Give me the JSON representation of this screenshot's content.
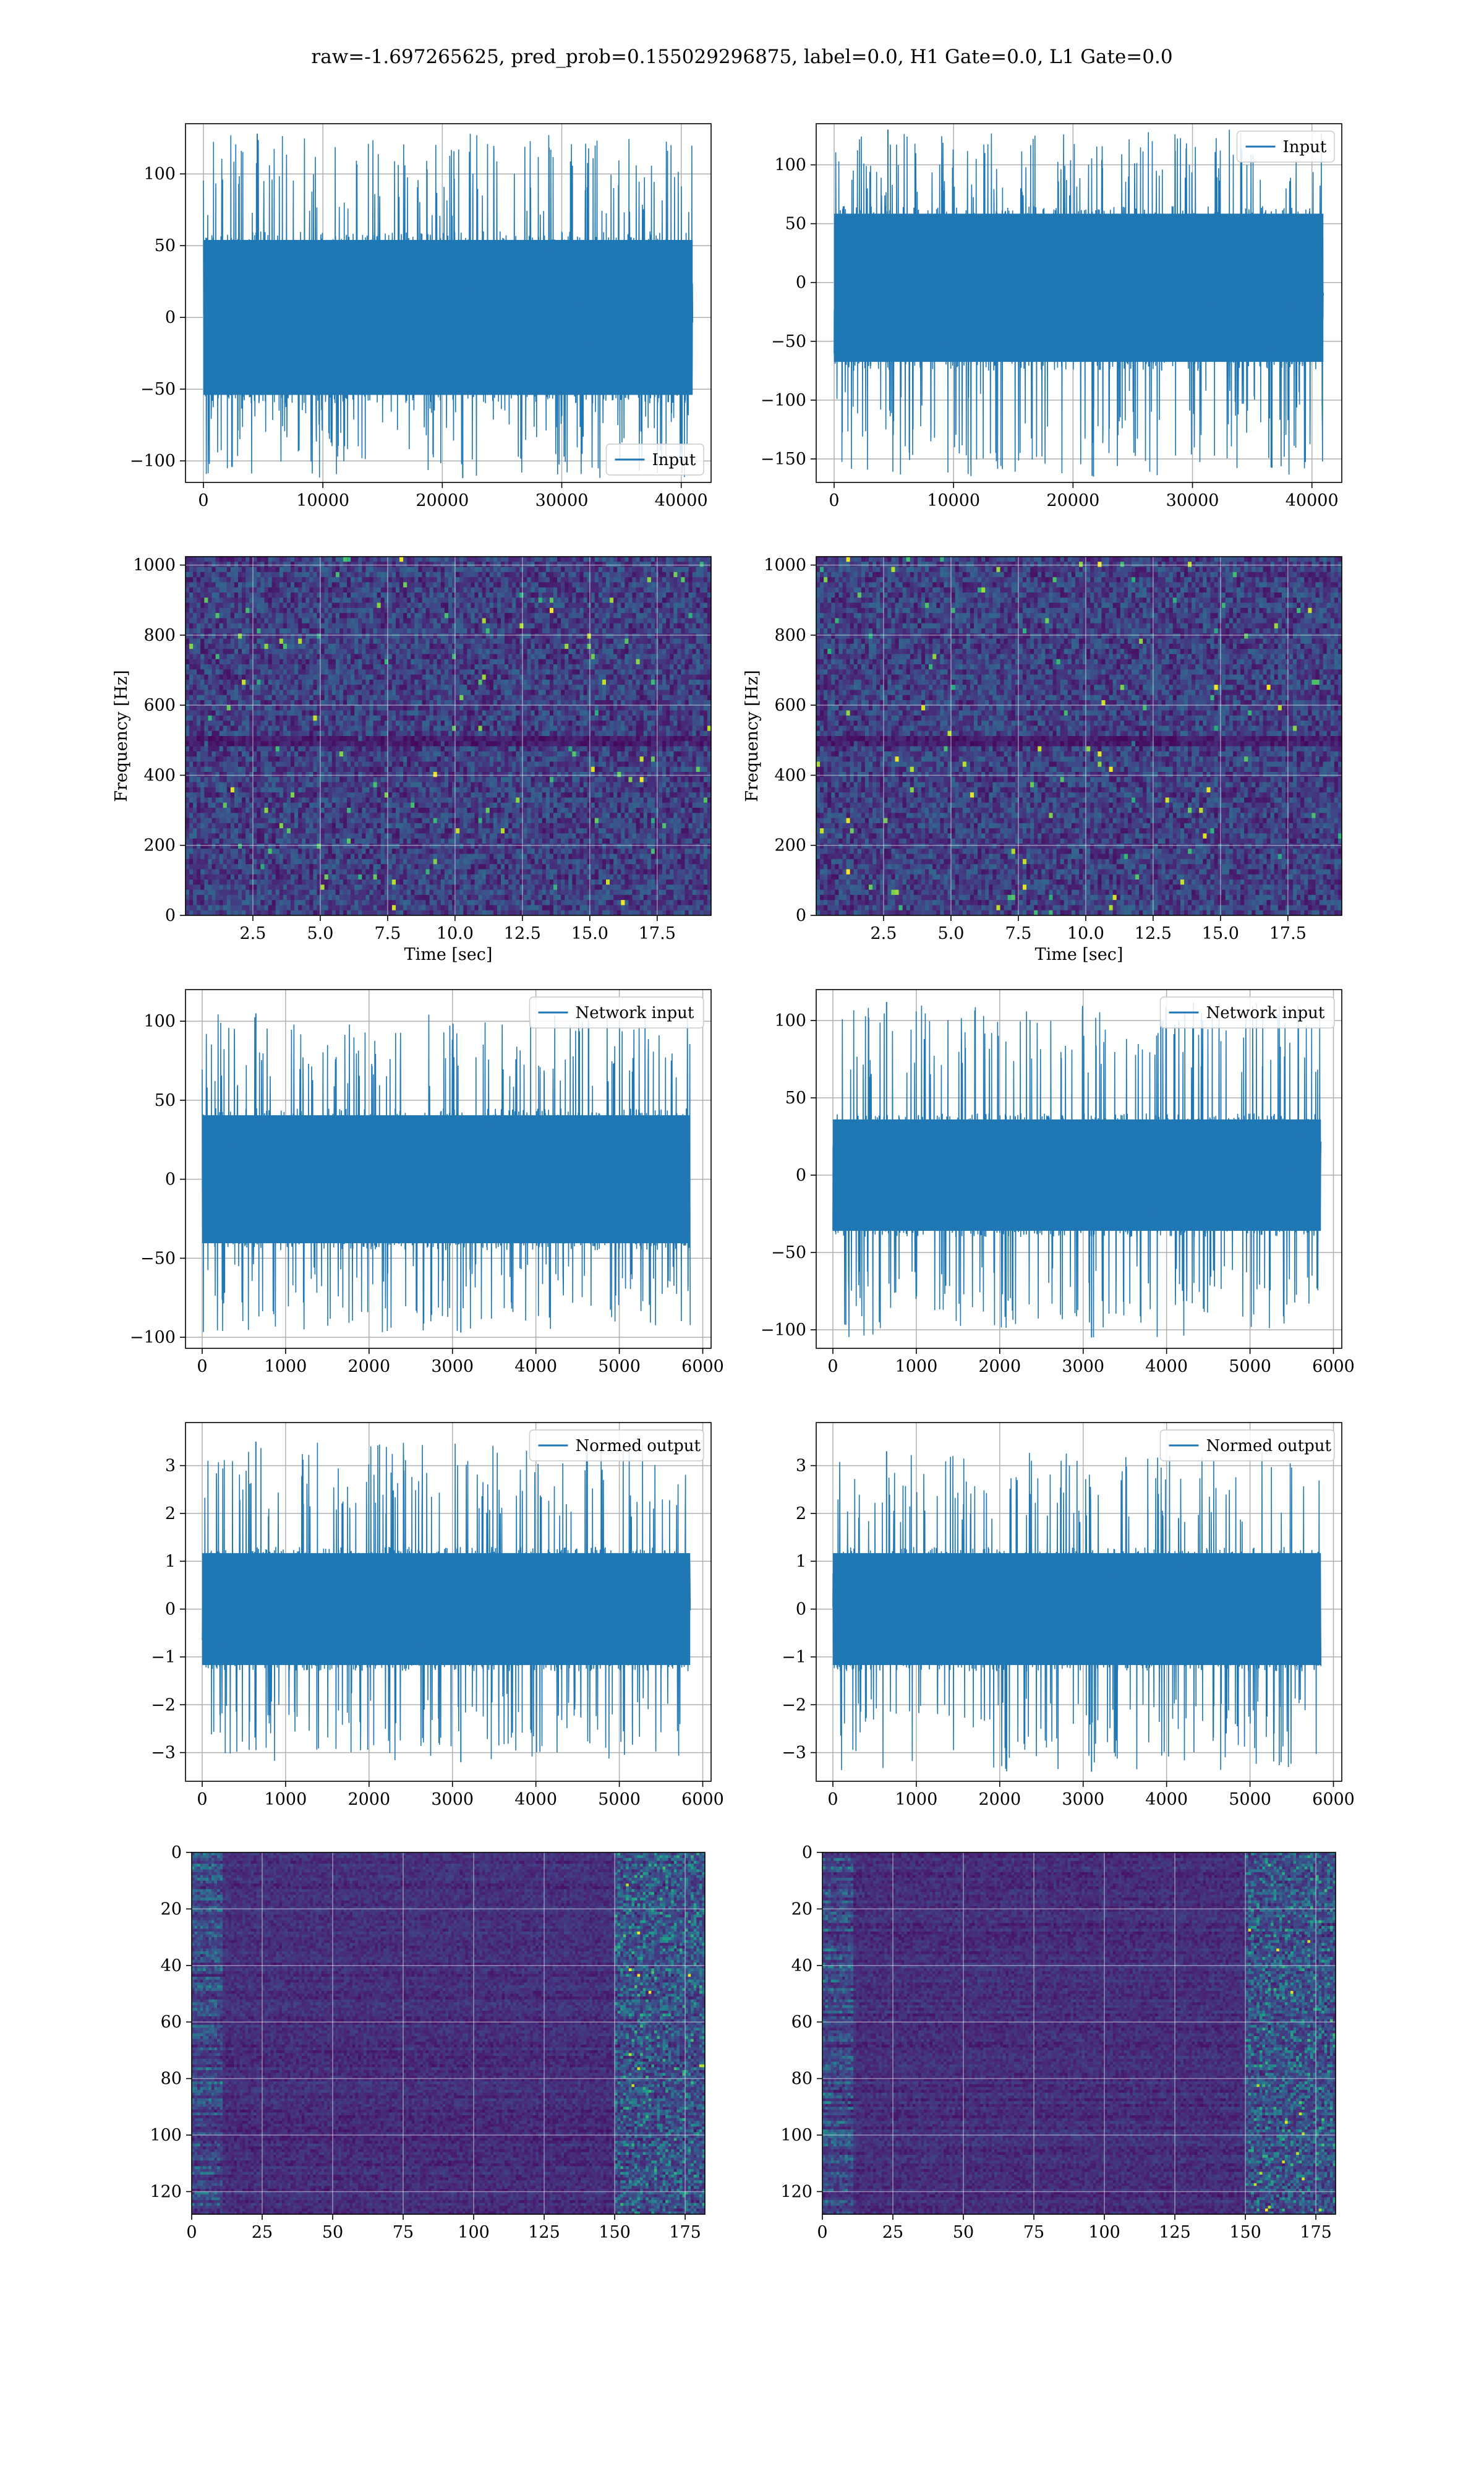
{
  "suptitle": "raw=-1.697265625, pred_prob=0.155029296875, label=0.0, H1 Gate=0.0, L1 Gate=0.0",
  "colors": {
    "line": "#1f77b4",
    "grid": "#b0b0b0",
    "viridis_dark": "#440154",
    "viridis_bright": "#fde725"
  },
  "chart_data": [
    {
      "id": "h1-input",
      "type": "line",
      "legend": "Input",
      "legend_loc": "lower-right",
      "xlim": [
        -1500,
        42500
      ],
      "ylim": [
        -115,
        135
      ],
      "xticks": [
        0,
        10000,
        20000,
        30000,
        40000
      ],
      "yticks": [
        -100,
        -50,
        0,
        50,
        100
      ],
      "xtick_labels": [
        "0",
        "10000",
        "20000",
        "30000",
        "40000"
      ],
      "ytick_labels": [
        "−100",
        "−50",
        "0",
        "50",
        "100"
      ],
      "signal": {
        "x_start": 0,
        "x_end": 40960,
        "core_min": -60,
        "core_max": 60,
        "peak_min": -112,
        "peak_max": 128
      }
    },
    {
      "id": "l1-input",
      "type": "line",
      "legend": "Input",
      "legend_loc": "upper-right",
      "xlim": [
        -1500,
        42500
      ],
      "ylim": [
        -170,
        135
      ],
      "xticks": [
        0,
        10000,
        20000,
        30000,
        40000
      ],
      "yticks": [
        -150,
        -100,
        -50,
        0,
        50,
        100
      ],
      "xtick_labels": [
        "0",
        "10000",
        "20000",
        "30000",
        "40000"
      ],
      "ytick_labels": [
        "−150",
        "−100",
        "−50",
        "0",
        "50",
        "100"
      ],
      "signal": {
        "x_start": 0,
        "x_end": 40960,
        "core_min": -75,
        "core_max": 65,
        "peak_min": -165,
        "peak_max": 130
      }
    },
    {
      "id": "h1-spectrogram",
      "type": "heatmap",
      "colormap": "viridis",
      "xlabel": "Time [sec]",
      "ylabel": "Frequency [Hz]",
      "xlim": [
        0,
        19.5
      ],
      "ylim": [
        0,
        1024
      ],
      "xticks": [
        2.5,
        5.0,
        7.5,
        10.0,
        12.5,
        15.0,
        17.5
      ],
      "yticks": [
        0,
        200,
        400,
        600,
        800,
        1000
      ],
      "xtick_labels": [
        "2.5",
        "5.0",
        "7.5",
        "10.0",
        "12.5",
        "15.0",
        "17.5"
      ],
      "ytick_labels": [
        "0",
        "200",
        "400",
        "600",
        "800",
        "1000"
      ]
    },
    {
      "id": "l1-spectrogram",
      "type": "heatmap",
      "colormap": "viridis",
      "xlabel": "Time [sec]",
      "ylabel": "Frequency [Hz]",
      "xlim": [
        0,
        19.5
      ],
      "ylim": [
        0,
        1024
      ],
      "xticks": [
        2.5,
        5.0,
        7.5,
        10.0,
        12.5,
        15.0,
        17.5
      ],
      "yticks": [
        0,
        200,
        400,
        600,
        800,
        1000
      ],
      "xtick_labels": [
        "2.5",
        "5.0",
        "7.5",
        "10.0",
        "12.5",
        "15.0",
        "17.5"
      ],
      "ytick_labels": [
        "0",
        "200",
        "400",
        "600",
        "800",
        "1000"
      ]
    },
    {
      "id": "h1-network-input",
      "type": "line",
      "legend": "Network input",
      "legend_loc": "upper-right",
      "xlim": [
        -200,
        6100
      ],
      "ylim": [
        -107,
        120
      ],
      "xticks": [
        0,
        1000,
        2000,
        3000,
        4000,
        5000,
        6000
      ],
      "yticks": [
        -100,
        -50,
        0,
        50,
        100
      ],
      "xtick_labels": [
        "0",
        "1000",
        "2000",
        "3000",
        "4000",
        "5000",
        "6000"
      ],
      "ytick_labels": [
        "−100",
        "−50",
        "0",
        "50",
        "100"
      ],
      "signal": {
        "x_start": 0,
        "x_end": 5850,
        "core_min": -45,
        "core_max": 45,
        "peak_min": -97,
        "peak_max": 105
      }
    },
    {
      "id": "l1-network-input",
      "type": "line",
      "legend": "Network input",
      "legend_loc": "upper-right",
      "xlim": [
        -200,
        6100
      ],
      "ylim": [
        -112,
        120
      ],
      "xticks": [
        0,
        1000,
        2000,
        3000,
        4000,
        5000,
        6000
      ],
      "yticks": [
        -100,
        -50,
        0,
        50,
        100
      ],
      "xtick_labels": [
        "0",
        "1000",
        "2000",
        "3000",
        "4000",
        "5000",
        "6000"
      ],
      "ytick_labels": [
        "−100",
        "−50",
        "0",
        "50",
        "100"
      ],
      "signal": {
        "x_start": 0,
        "x_end": 5850,
        "core_min": -40,
        "core_max": 40,
        "peak_min": -105,
        "peak_max": 112
      }
    },
    {
      "id": "h1-normed-output",
      "type": "line",
      "legend": "Normed output",
      "legend_loc": "upper-right",
      "xlim": [
        -200,
        6100
      ],
      "ylim": [
        -3.6,
        3.9
      ],
      "xticks": [
        0,
        1000,
        2000,
        3000,
        4000,
        5000,
        6000
      ],
      "yticks": [
        -3,
        -2,
        -1,
        0,
        1,
        2,
        3
      ],
      "xtick_labels": [
        "0",
        "1000",
        "2000",
        "3000",
        "4000",
        "5000",
        "6000"
      ],
      "ytick_labels": [
        "−3",
        "−2",
        "−1",
        "0",
        "1",
        "2",
        "3"
      ],
      "signal": {
        "x_start": 0,
        "x_end": 5850,
        "core_min": -1.3,
        "core_max": 1.3,
        "peak_min": -3.2,
        "peak_max": 3.5
      }
    },
    {
      "id": "l1-normed-output",
      "type": "line",
      "legend": "Normed output",
      "legend_loc": "upper-right",
      "xlim": [
        -200,
        6100
      ],
      "ylim": [
        -3.6,
        3.9
      ],
      "xticks": [
        0,
        1000,
        2000,
        3000,
        4000,
        5000,
        6000
      ],
      "yticks": [
        -3,
        -2,
        -1,
        0,
        1,
        2,
        3
      ],
      "xtick_labels": [
        "0",
        "1000",
        "2000",
        "3000",
        "4000",
        "5000",
        "6000"
      ],
      "ytick_labels": [
        "−3",
        "−2",
        "−1",
        "0",
        "1",
        "2",
        "3"
      ],
      "signal": {
        "x_start": 0,
        "x_end": 5850,
        "core_min": -1.3,
        "core_max": 1.3,
        "peak_min": -3.4,
        "peak_max": 3.3
      }
    },
    {
      "id": "h1-feature-map",
      "type": "heatmap",
      "colormap": "viridis",
      "xlim": [
        0,
        182
      ],
      "ylim": [
        128,
        0
      ],
      "xticks": [
        0,
        25,
        50,
        75,
        100,
        125,
        150,
        175
      ],
      "yticks": [
        0,
        20,
        40,
        60,
        80,
        100,
        120
      ],
      "xtick_labels": [
        "0",
        "25",
        "50",
        "75",
        "100",
        "125",
        "150",
        "175"
      ],
      "ytick_labels": [
        "0",
        "20",
        "40",
        "60",
        "80",
        "100",
        "120"
      ]
    },
    {
      "id": "l1-feature-map",
      "type": "heatmap",
      "colormap": "viridis",
      "xlim": [
        0,
        182
      ],
      "ylim": [
        128,
        0
      ],
      "xticks": [
        0,
        25,
        50,
        75,
        100,
        125,
        150,
        175
      ],
      "yticks": [
        0,
        20,
        40,
        60,
        80,
        100,
        120
      ],
      "xtick_labels": [
        "0",
        "25",
        "50",
        "75",
        "100",
        "125",
        "150",
        "175"
      ],
      "ytick_labels": [
        "0",
        "20",
        "40",
        "60",
        "80",
        "100",
        "120"
      ]
    }
  ]
}
